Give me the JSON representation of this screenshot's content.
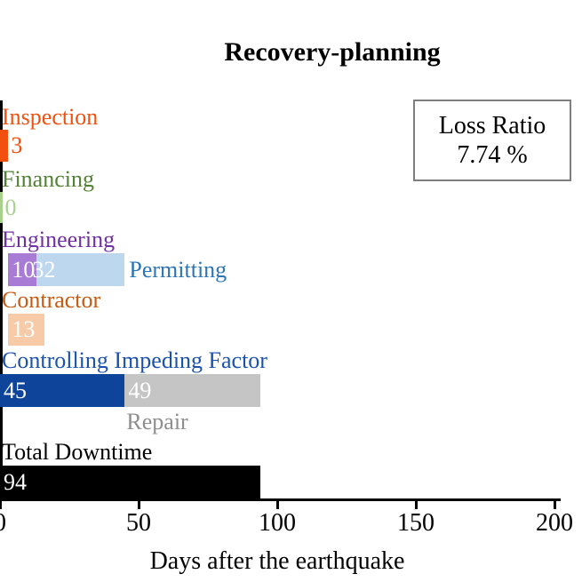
{
  "chart_data": {
    "type": "bar",
    "subtype": "horizontal-gantt-downtime",
    "title": "Recovery-planning",
    "xlabel": "Days after the earthquake",
    "xlim": [
      0,
      200
    ],
    "xticks": [
      0,
      50,
      100,
      150,
      200
    ],
    "grid": "off",
    "loss_ratio": {
      "label": "Loss Ratio",
      "value": "7.74 %"
    },
    "rows": [
      {
        "id": "inspection",
        "label": "Inspection",
        "label_color": "#F1500E",
        "segments": [
          {
            "name": "Inspection",
            "start": 0,
            "duration": 3,
            "value": "3",
            "color": "#F1500E",
            "value_style": "after",
            "value_color": "#F1500E"
          }
        ]
      },
      {
        "id": "financing",
        "label": "Financing",
        "label_color": "#538135",
        "segments": [
          {
            "name": "Financing",
            "start": 0,
            "duration": 0,
            "value": "0",
            "color": "#A9D18E",
            "value_style": "after",
            "value_color": "#A9D18E"
          }
        ]
      },
      {
        "id": "engineering",
        "label": "Engineering",
        "label_color": "#7030A0",
        "segments": [
          {
            "name": "Engineering",
            "start": 3,
            "duration": 10,
            "value": "10",
            "color": "#A87BD5",
            "value_style": "inside",
            "value_color": "#FFFFFF"
          },
          {
            "name": "Permitting",
            "start": 13,
            "duration": 32,
            "value": "32",
            "color": "#BDD7EE",
            "value_style": "inside",
            "value_color": "#FFFFFF",
            "value_dx": -8,
            "side_label": "Permitting",
            "side_label_color": "#2E75B6"
          }
        ]
      },
      {
        "id": "contractor",
        "label": "Contractor",
        "label_color": "#C55A11",
        "segments": [
          {
            "name": "Contractor",
            "start": 3,
            "duration": 13,
            "value": "13",
            "color": "#F8CBA8",
            "value_style": "inside",
            "value_color": "#FFFFFF"
          }
        ]
      },
      {
        "id": "controlling-impeding-factor",
        "label": "Controlling Impeding Factor",
        "label_color": "#1A52AE",
        "segments": [
          {
            "name": "Controlling Impeding Factor",
            "start": 0,
            "duration": 45,
            "value": "45",
            "color": "#0F449B",
            "value_style": "inside",
            "value_color": "#FFFFFF"
          },
          {
            "name": "Repair",
            "start": 45,
            "duration": 49,
            "value": "49",
            "color": "#C5C5C5",
            "value_style": "inside",
            "value_color": "#FFFFFF",
            "below_label": "Repair",
            "below_label_color": "#8E8E8E"
          }
        ]
      },
      {
        "id": "total-downtime",
        "label": "Total Downtime",
        "label_color": "#000000",
        "segments": [
          {
            "name": "Total Downtime",
            "start": 0,
            "duration": 94,
            "value": "94",
            "color": "#000000",
            "value_style": "inside",
            "value_color": "#FFFFFF"
          }
        ]
      }
    ]
  }
}
